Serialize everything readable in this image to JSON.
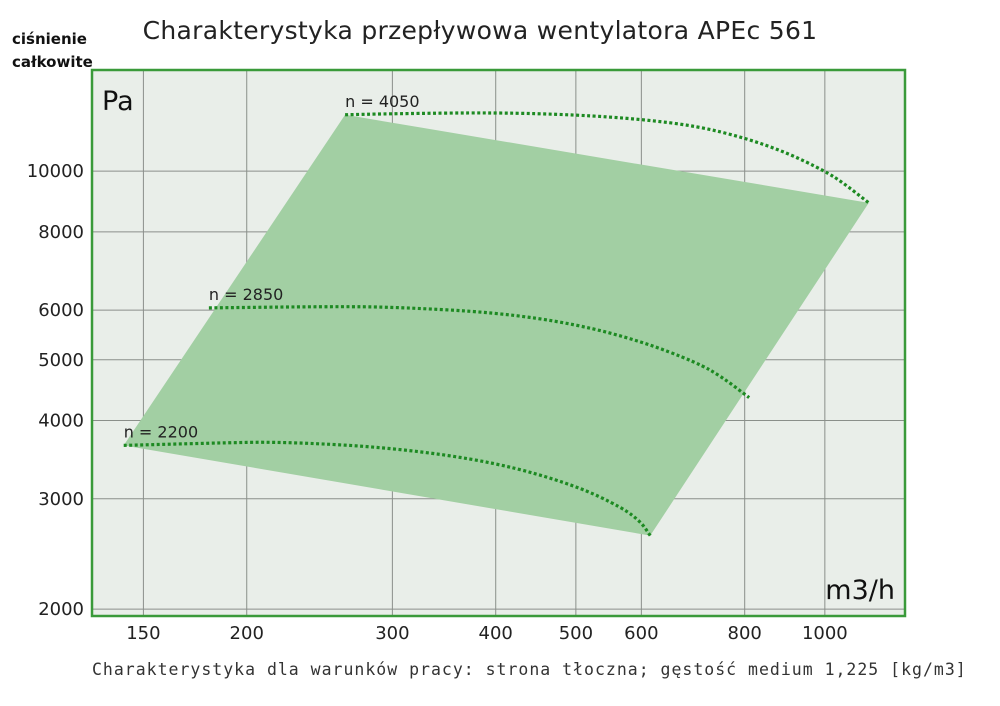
{
  "chart_data": {
    "type": "line",
    "title": "Charakterystyka przepływowa wentylatora APEc 561",
    "ylabel": "ciśnienie całkowite",
    "y_unit": "Pa",
    "x_unit": "m3/h",
    "caption": "Charakterystyka dla warunków pracy: strona tłoczna; gęstość medium 1,225 [kg/m3]",
    "x_scale": "log",
    "y_scale": "log",
    "xlim": [
      130,
      1250
    ],
    "ylim": [
      1950,
      14500
    ],
    "x_ticks": [
      150,
      200,
      300,
      400,
      500,
      600,
      800,
      1000
    ],
    "y_ticks": [
      2000,
      3000,
      4000,
      5000,
      6000,
      8000,
      10000
    ],
    "operating_area": [
      [
        142,
        3650
      ],
      [
        263,
        12300
      ],
      [
        1130,
        8900
      ],
      [
        615,
        2620
      ]
    ],
    "series": [
      {
        "name": "n = 4050",
        "x": [
          263,
          300,
          400,
          500,
          600,
          700,
          800,
          900,
          1000,
          1050,
          1130
        ],
        "y": [
          12300,
          12350,
          12400,
          12300,
          12100,
          11800,
          11300,
          10700,
          10000,
          9600,
          8900
        ]
      },
      {
        "name": "n = 2850",
        "x": [
          180,
          250,
          300,
          400,
          500,
          600,
          700,
          750,
          810
        ],
        "y": [
          6050,
          6080,
          6070,
          5950,
          5700,
          5350,
          4950,
          4700,
          4350
        ]
      },
      {
        "name": "n = 2200",
        "x": [
          142,
          180,
          220,
          300,
          400,
          500,
          570,
          600,
          615
        ],
        "y": [
          3650,
          3680,
          3700,
          3620,
          3430,
          3150,
          2900,
          2750,
          2620
        ]
      }
    ],
    "colors": {
      "area": "#a2cfa3",
      "curve": "#1d8a22",
      "frame": "#3a9a3a",
      "plot_bg": "#e9eee9",
      "grid": "#8a8f8a"
    }
  }
}
